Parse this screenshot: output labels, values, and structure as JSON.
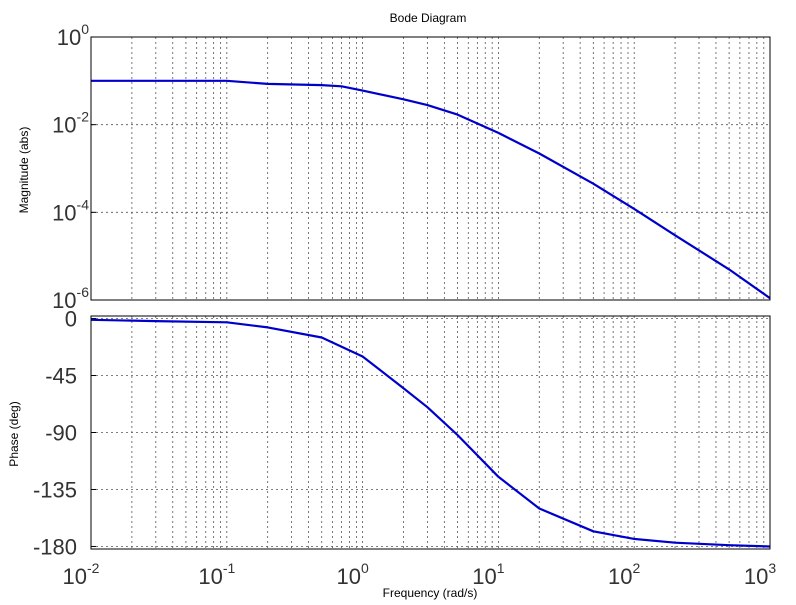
{
  "chart_data": {
    "type": "line",
    "title": "Bode Diagram",
    "xlabel": "Frequency  (rad/s)",
    "x_scale": "log",
    "xlim": [
      0.01,
      1000
    ],
    "x_ticks": [
      {
        "base": "10",
        "exp": "-2"
      },
      {
        "base": "10",
        "exp": "-1"
      },
      {
        "base": "10",
        "exp": "0"
      },
      {
        "base": "10",
        "exp": "1"
      },
      {
        "base": "10",
        "exp": "2"
      },
      {
        "base": "10",
        "exp": "3"
      }
    ],
    "grid": true,
    "panels": [
      {
        "id": "magnitude",
        "ylabel": "Magnitude (abs)",
        "y_scale": "log",
        "ylim": [
          1e-06,
          1
        ],
        "y_ticks": [
          {
            "base": "10",
            "exp": "0"
          },
          {
            "base": "10",
            "exp": "-2"
          },
          {
            "base": "10",
            "exp": "-4"
          },
          {
            "base": "10",
            "exp": "-6"
          }
        ],
        "series": [
          {
            "color": "#0000cc",
            "x": [
              0.01,
              0.05,
              0.1,
              0.2,
              0.5,
              0.7,
              1,
              2,
              3,
              5,
              10,
              20,
              50,
              100,
              200,
              500,
              1000
            ],
            "y": [
              0.1,
              0.1,
              0.1,
              0.085,
              0.08,
              0.075,
              0.06,
              0.038,
              0.028,
              0.017,
              0.0065,
              0.0022,
              0.00045,
              0.00012,
              3e-05,
              5e-06,
              1.1e-06
            ]
          }
        ]
      },
      {
        "id": "phase",
        "ylabel": "Phase (deg)",
        "y_scale": "linear",
        "ylim": [
          -182,
          2
        ],
        "y_ticks": [
          {
            "base": "0",
            "exp": ""
          },
          {
            "base": "-45",
            "exp": ""
          },
          {
            "base": "-90",
            "exp": ""
          },
          {
            "base": "-135",
            "exp": ""
          },
          {
            "base": "-180",
            "exp": ""
          }
        ],
        "series": [
          {
            "color": "#0000cc",
            "x": [
              0.01,
              0.03,
              0.1,
              0.2,
              0.5,
              1,
              2,
              3,
              5,
              10,
              20,
              50,
              100,
              200,
              500,
              1000
            ],
            "y": [
              -1,
              -2,
              -3,
              -7,
              -15,
              -30,
              -55,
              -70,
              -92,
              -125,
              -150,
              -168,
              -174,
              -177,
              -179,
              -180
            ]
          }
        ]
      }
    ]
  }
}
